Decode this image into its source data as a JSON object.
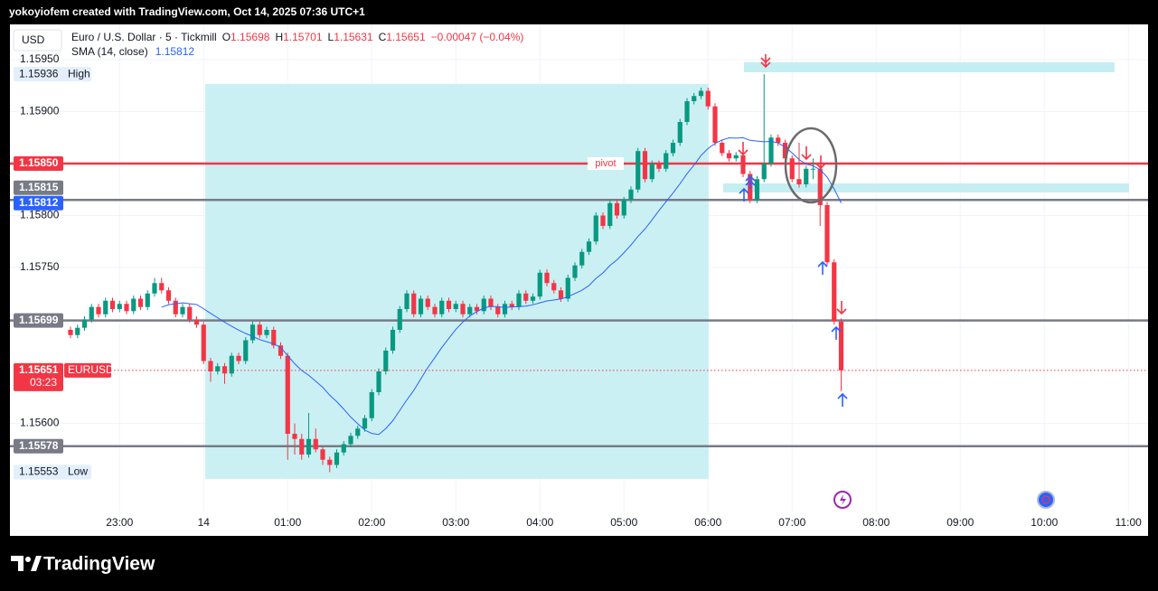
{
  "header": "yokoyiofem created with TradingView.com, Oct 14, 2025 07:36 UTC+1",
  "footer_logo": "TradingView",
  "chart_data": {
    "type": "candlestick",
    "currency": "USD",
    "symbol": "Euro / U.S. Dollar · 5 · Tickmill",
    "ohlc_letters": [
      "O",
      "H",
      "L",
      "C"
    ],
    "change": "−0.00047 (−0.04%)",
    "indicator": {
      "name": "SMA (14, close)",
      "period": 14,
      "value": 1.15812,
      "color": "#2962ff"
    },
    "up_color": "#089981",
    "down_color": "#f23645",
    "candles": [
      [
        1.1569,
        1.15693,
        1.15682,
        1.15685
      ],
      [
        1.15685,
        1.15695,
        1.15682,
        1.15692
      ],
      [
        1.15692,
        1.15703,
        1.15689,
        1.157
      ],
      [
        1.157,
        1.15715,
        1.15697,
        1.15712
      ],
      [
        1.15712,
        1.15715,
        1.15702,
        1.15705
      ],
      [
        1.15705,
        1.15721,
        1.15702,
        1.15718
      ],
      [
        1.15718,
        1.15721,
        1.15707,
        1.1571
      ],
      [
        1.1571,
        1.15718,
        1.15707,
        1.15715
      ],
      [
        1.15715,
        1.15718,
        1.15705,
        1.15708
      ],
      [
        1.15708,
        1.15723,
        1.15705,
        1.1572
      ],
      [
        1.1572,
        1.15723,
        1.15709,
        1.15712
      ],
      [
        1.15712,
        1.15728,
        1.15709,
        1.15725
      ],
      [
        1.15725,
        1.1574,
        1.15722,
        1.15735
      ],
      [
        1.15735,
        1.1574,
        1.15725,
        1.15728
      ],
      [
        1.15728,
        1.15731,
        1.15715,
        1.15718
      ],
      [
        1.15718,
        1.15721,
        1.15702,
        1.15705
      ],
      [
        1.15705,
        1.15715,
        1.15702,
        1.15712
      ],
      [
        1.15712,
        1.15715,
        1.15697,
        1.157
      ],
      [
        1.157,
        1.15703,
        1.15692,
        1.15695
      ],
      [
        1.15695,
        1.15698,
        1.15657,
        1.1566
      ],
      [
        1.1566,
        1.15663,
        1.1564,
        1.1565
      ],
      [
        1.1565,
        1.15658,
        1.15647,
        1.15655
      ],
      [
        1.15655,
        1.15658,
        1.15638,
        1.15648
      ],
      [
        1.15648,
        1.15668,
        1.15645,
        1.15665
      ],
      [
        1.15665,
        1.15668,
        1.15657,
        1.1566
      ],
      [
        1.1566,
        1.15683,
        1.15657,
        1.1568
      ],
      [
        1.1568,
        1.15698,
        1.15677,
        1.15695
      ],
      [
        1.15695,
        1.15698,
        1.15682,
        1.15685
      ],
      [
        1.15685,
        1.15693,
        1.15682,
        1.1569
      ],
      [
        1.1569,
        1.15693,
        1.15672,
        1.15675
      ],
      [
        1.15675,
        1.15678,
        1.15662,
        1.15665
      ],
      [
        1.15665,
        1.15668,
        1.15565,
        1.1559
      ],
      [
        1.1559,
        1.156,
        1.1557,
        1.15585
      ],
      [
        1.15585,
        1.1559,
        1.15565,
        1.1557
      ],
      [
        1.1557,
        1.1561,
        1.15567,
        1.15585
      ],
      [
        1.15585,
        1.15595,
        1.15572,
        1.15575
      ],
      [
        1.15575,
        1.15578,
        1.1556,
        1.15565
      ],
      [
        1.15565,
        1.15568,
        1.15553,
        1.1556
      ],
      [
        1.1556,
        1.15575,
        1.15557,
        1.15572
      ],
      [
        1.15572,
        1.15583,
        1.15569,
        1.1558
      ],
      [
        1.1558,
        1.15591,
        1.15577,
        1.15588
      ],
      [
        1.15588,
        1.15598,
        1.15585,
        1.15595
      ],
      [
        1.15595,
        1.15608,
        1.15592,
        1.15605
      ],
      [
        1.15605,
        1.15633,
        1.15602,
        1.1563
      ],
      [
        1.1563,
        1.15653,
        1.15627,
        1.1565
      ],
      [
        1.1565,
        1.15673,
        1.15647,
        1.1567
      ],
      [
        1.1567,
        1.15693,
        1.15667,
        1.1569
      ],
      [
        1.1569,
        1.15713,
        1.15687,
        1.1571
      ],
      [
        1.1571,
        1.15728,
        1.15707,
        1.15725
      ],
      [
        1.15725,
        1.15728,
        1.15702,
        1.15705
      ],
      [
        1.15705,
        1.15723,
        1.15702,
        1.1572
      ],
      [
        1.1572,
        1.15723,
        1.15709,
        1.15712
      ],
      [
        1.15712,
        1.15715,
        1.15702,
        1.15705
      ],
      [
        1.15705,
        1.15721,
        1.15702,
        1.15718
      ],
      [
        1.15718,
        1.15721,
        1.15707,
        1.1571
      ],
      [
        1.1571,
        1.15718,
        1.15707,
        1.15715
      ],
      [
        1.15715,
        1.15718,
        1.15702,
        1.15705
      ],
      [
        1.15705,
        1.15715,
        1.15702,
        1.15712
      ],
      [
        1.15712,
        1.15715,
        1.15705,
        1.15708
      ],
      [
        1.15708,
        1.15723,
        1.15705,
        1.1572
      ],
      [
        1.1572,
        1.15723,
        1.15709,
        1.15712
      ],
      [
        1.15712,
        1.15715,
        1.15702,
        1.15705
      ],
      [
        1.15705,
        1.15718,
        1.15702,
        1.15715
      ],
      [
        1.15715,
        1.15718,
        1.15709,
        1.15712
      ],
      [
        1.15712,
        1.15728,
        1.15709,
        1.15725
      ],
      [
        1.15725,
        1.15728,
        1.15715,
        1.15718
      ],
      [
        1.15718,
        1.15725,
        1.15715,
        1.15722
      ],
      [
        1.15722,
        1.15748,
        1.15719,
        1.15745
      ],
      [
        1.15745,
        1.15748,
        1.15732,
        1.15735
      ],
      [
        1.15735,
        1.15738,
        1.15725,
        1.15728
      ],
      [
        1.15728,
        1.15731,
        1.15717,
        1.1572
      ],
      [
        1.1572,
        1.15743,
        1.15717,
        1.1574
      ],
      [
        1.1574,
        1.15755,
        1.15737,
        1.15752
      ],
      [
        1.15752,
        1.15768,
        1.15749,
        1.15765
      ],
      [
        1.15765,
        1.15778,
        1.15762,
        1.15775
      ],
      [
        1.15775,
        1.15803,
        1.15772,
        1.158
      ],
      [
        1.158,
        1.15803,
        1.15787,
        1.1579
      ],
      [
        1.1579,
        1.15815,
        1.15787,
        1.15812
      ],
      [
        1.15812,
        1.15815,
        1.15797,
        1.158
      ],
      [
        1.158,
        1.15818,
        1.15797,
        1.15815
      ],
      [
        1.15815,
        1.15828,
        1.15812,
        1.15825
      ],
      [
        1.15825,
        1.15865,
        1.15822,
        1.15862
      ],
      [
        1.15862,
        1.15865,
        1.15832,
        1.15835
      ],
      [
        1.15835,
        1.15853,
        1.15832,
        1.1585
      ],
      [
        1.1585,
        1.15853,
        1.15842,
        1.15845
      ],
      [
        1.15845,
        1.15863,
        1.15842,
        1.1586
      ],
      [
        1.1586,
        1.15873,
        1.15857,
        1.1587
      ],
      [
        1.1587,
        1.15893,
        1.15867,
        1.1589
      ],
      [
        1.1589,
        1.15913,
        1.15887,
        1.1591
      ],
      [
        1.1591,
        1.15918,
        1.15907,
        1.15915
      ],
      [
        1.15915,
        1.15923,
        1.15912,
        1.1592
      ],
      [
        1.1592,
        1.15923,
        1.15902,
        1.15905
      ],
      [
        1.15905,
        1.15908,
        1.15867,
        1.1587
      ],
      [
        1.1587,
        1.15873,
        1.15857,
        1.1586
      ],
      [
        1.1586,
        1.15863,
        1.15852,
        1.15855
      ],
      [
        1.15855,
        1.15861,
        1.15852,
        1.15858
      ],
      [
        1.15858,
        1.15861,
        1.15837,
        1.1584
      ],
      [
        1.1584,
        1.15843,
        1.15812,
        1.15815
      ],
      [
        1.15815,
        1.15838,
        1.15812,
        1.15835
      ],
      [
        1.15835,
        1.15936,
        1.15832,
        1.1585
      ],
      [
        1.1585,
        1.15878,
        1.15847,
        1.15875
      ],
      [
        1.15875,
        1.15878,
        1.15867,
        1.1587
      ],
      [
        1.1587,
        1.15873,
        1.15852,
        1.15855
      ],
      [
        1.15855,
        1.15858,
        1.15832,
        1.15835
      ],
      [
        1.15835,
        1.1587,
        1.15827,
        1.1583
      ],
      [
        1.1583,
        1.15848,
        1.15827,
        1.15845
      ],
      [
        1.15845,
        1.15855,
        1.15835,
        1.15845
      ],
      [
        1.15845,
        1.15848,
        1.1579,
        1.1581
      ],
      [
        1.1581,
        1.15813,
        1.15752,
        1.15755
      ],
      [
        1.15755,
        1.15758,
        1.15695,
        1.15698
      ],
      [
        1.15698,
        1.15701,
        1.15631,
        1.15651
      ]
    ],
    "time_labels": [
      "23:00",
      "14",
      "01:00",
      "02:00",
      "03:00",
      "04:00",
      "05:00",
      "06:00",
      "07:00",
      "08:00",
      "09:00",
      "10:00",
      "11:00"
    ],
    "ylim": [
      1.155,
      1.1598
    ],
    "yticks": [
      {
        "value": 1.1595,
        "label": "1.15950"
      },
      {
        "value": 1.159,
        "label": "1.15900"
      },
      {
        "value": 1.158,
        "label": "1.15800"
      },
      {
        "value": 1.1575,
        "label": "1.15750"
      },
      {
        "value": 1.156,
        "label": "1.15600"
      }
    ],
    "grid": true,
    "levels": [
      {
        "value": 1.1585,
        "label": "1.15850",
        "color": "#f23645",
        "text": "pivot"
      },
      {
        "value": 1.15815,
        "label": "1.15815",
        "color": "#787b86"
      },
      {
        "value": 1.15699,
        "label": "1.15699",
        "color": "#787b86"
      },
      {
        "value": 1.15578,
        "label": "1.15578",
        "color": "#787b86"
      }
    ],
    "last_price": {
      "symbol": "EURUSD",
      "countdown": "03:23",
      "color": "#f23645"
    },
    "high_label": "High",
    "low_label": "Low"
  }
}
